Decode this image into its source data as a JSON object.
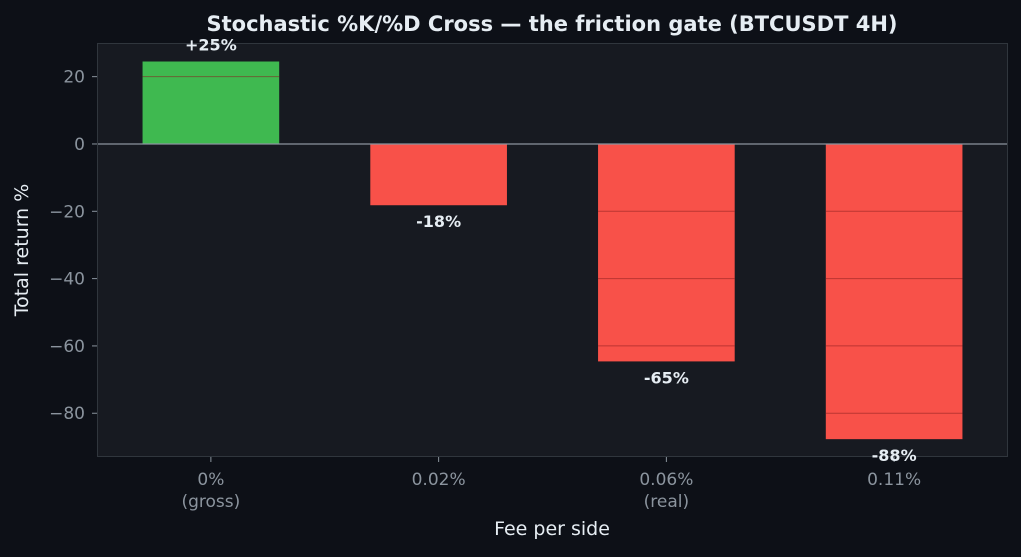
{
  "colors": {
    "page_background": "#0d1017",
    "plot_background": "#171a21",
    "plot_border": "#30363d",
    "gridline": "#8b1e1e",
    "zero_line": "#8b949e",
    "tick_label": "#8b949e",
    "axis_label": "#e6edf3",
    "title": "#e6edf3",
    "data_label": "#e6edf3",
    "positive_bar": "#3fb950",
    "negative_bar": "#f85149"
  },
  "chart_data": {
    "type": "bar",
    "title": "Stochastic %K/%D Cross — the friction gate (BTCUSDT 4H)",
    "xlabel": "Fee per side",
    "ylabel": "Total return %",
    "categories": [
      [
        "0%",
        "(gross)"
      ],
      [
        "0.02%"
      ],
      [
        "0.06%",
        "(real)"
      ],
      [
        "0.11%"
      ]
    ],
    "values": [
      24.5,
      -18.2,
      -64.6,
      -87.7
    ],
    "data_labels": [
      "+25%",
      "-18%",
      "-65%",
      "-88%"
    ],
    "ylim": [
      -93,
      30
    ],
    "yticks": [
      20,
      0,
      -20,
      -40,
      -60,
      -80
    ],
    "ytick_labels": [
      "20",
      "0",
      "−20",
      "−40",
      "−60",
      "−80"
    ],
    "grid": "horizontal, drawn over bars",
    "zero_line": true,
    "legend": "none"
  }
}
